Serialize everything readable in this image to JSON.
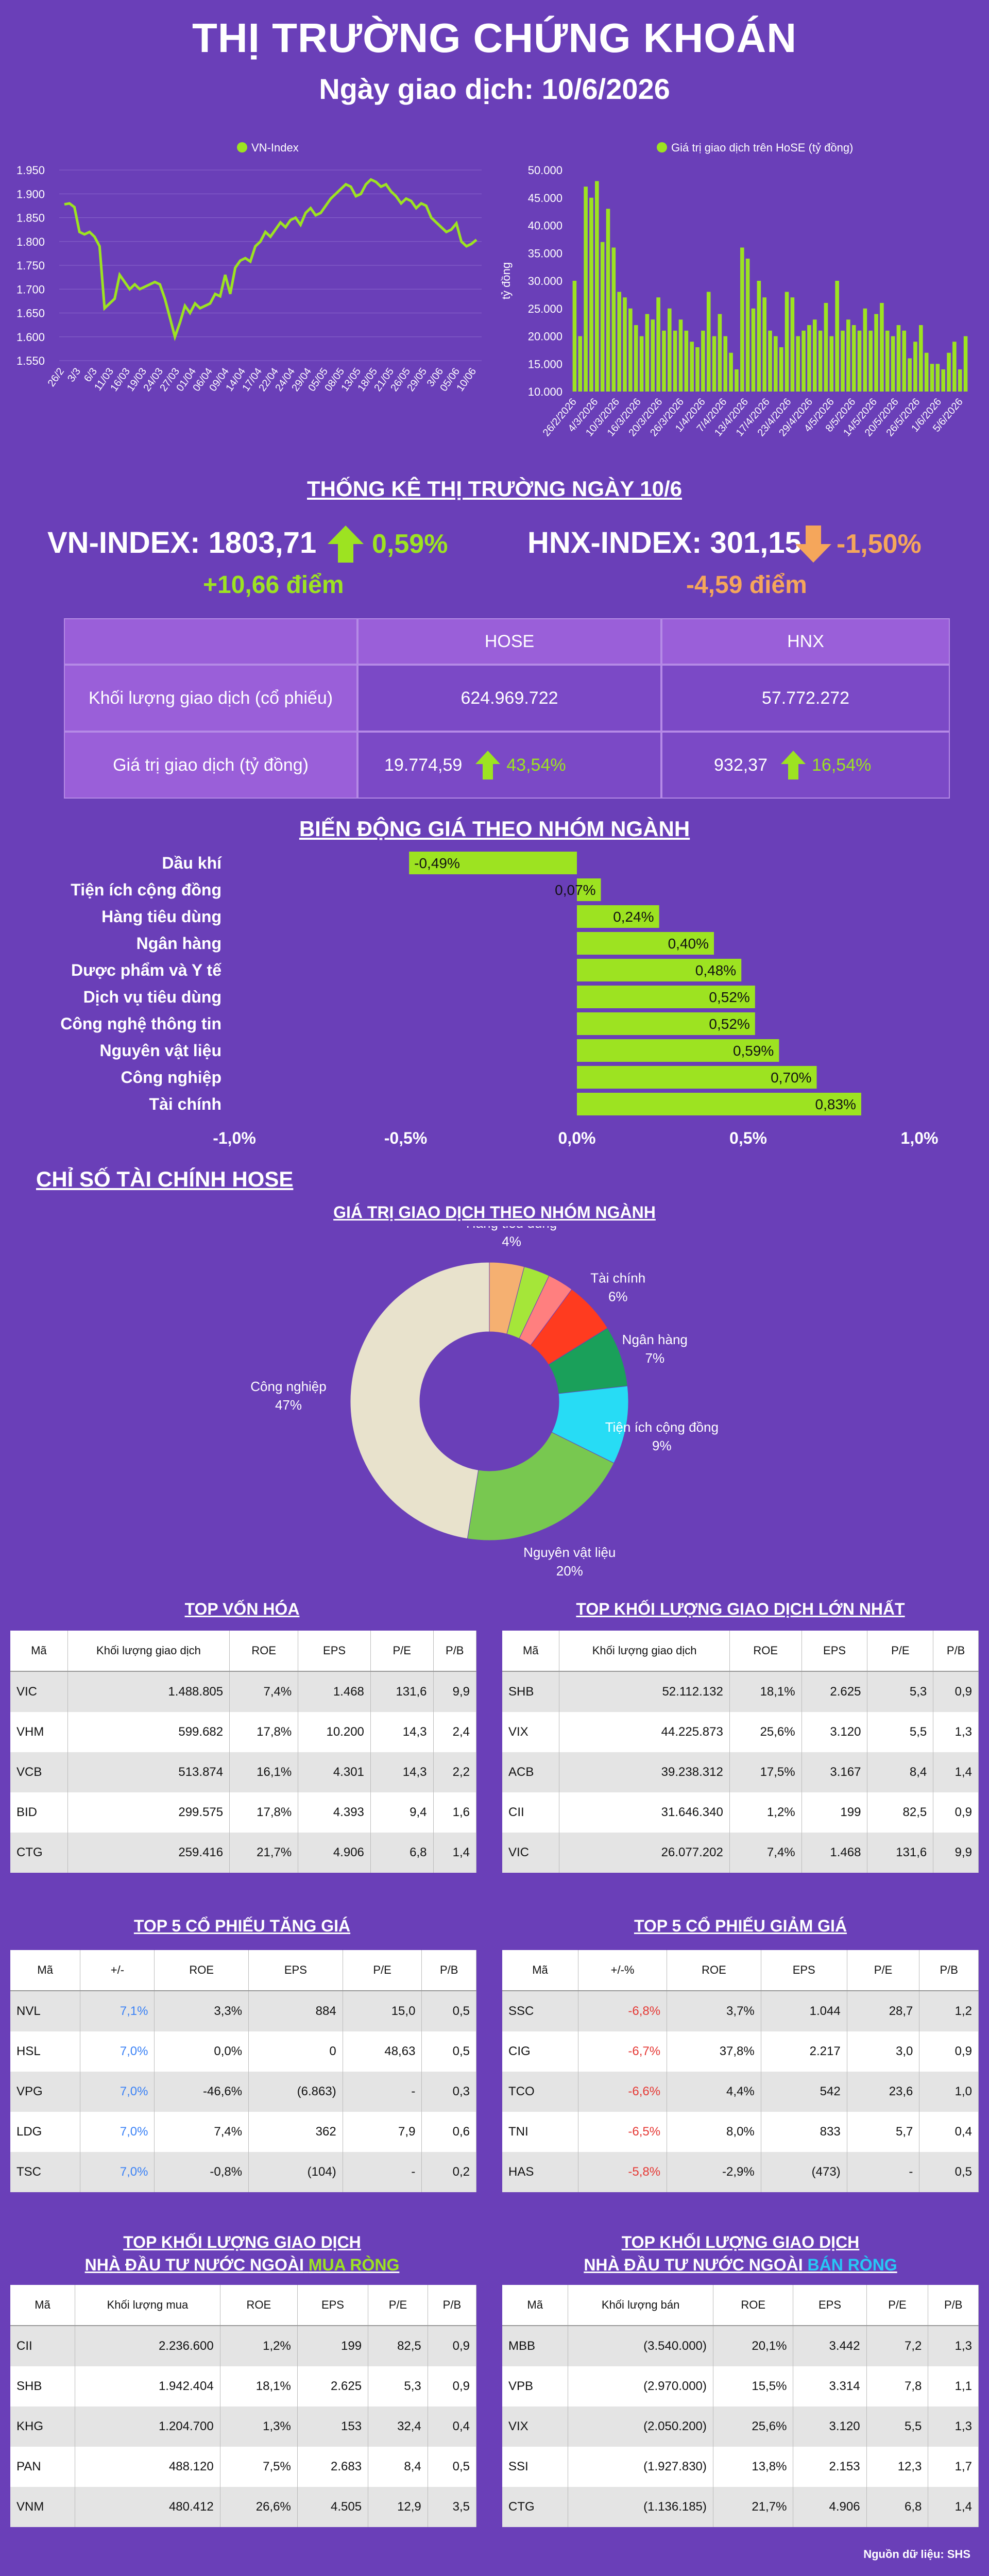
{
  "header": {
    "title": "THỊ TRƯỜNG CHỨNG KHOÁN",
    "subtitle": "Ngày giao dịch: 10/6/2026"
  },
  "colors": {
    "background": "#6a3fb8",
    "green": "#9de321",
    "orange": "#f5a65b",
    "table_head": "#9a5fd9"
  },
  "chart_data": [
    {
      "type": "line",
      "legend": "VN-Index",
      "color": "#9de321",
      "ylim": [
        1550,
        1950
      ],
      "yticks": [
        "1.950",
        "1.900",
        "1.850",
        "1.800",
        "1.750",
        "1.700",
        "1.650",
        "1.600",
        "1.550"
      ],
      "xticks": [
        "26/2",
        "3/3",
        "6/3",
        "11/03",
        "16/03",
        "19/03",
        "24/03",
        "27/03",
        "01/04",
        "06/04",
        "09/04",
        "14/04",
        "17/04",
        "22/04",
        "24/04",
        "29/04",
        "05/05",
        "08/05",
        "13/05",
        "18/05",
        "21/05",
        "26/05",
        "29/05",
        "3/06",
        "05/06",
        "10/06"
      ],
      "values": [
        1878,
        1880,
        1872,
        1820,
        1815,
        1820,
        1810,
        1790,
        1660,
        1670,
        1680,
        1730,
        1715,
        1700,
        1710,
        1700,
        1705,
        1710,
        1715,
        1710,
        1680,
        1640,
        1600,
        1630,
        1665,
        1650,
        1670,
        1660,
        1665,
        1670,
        1690,
        1685,
        1730,
        1690,
        1745,
        1760,
        1765,
        1758,
        1790,
        1800,
        1820,
        1810,
        1825,
        1840,
        1830,
        1845,
        1850,
        1835,
        1860,
        1870,
        1855,
        1860,
        1875,
        1890,
        1900,
        1910,
        1920,
        1915,
        1895,
        1900,
        1920,
        1930,
        1925,
        1915,
        1920,
        1905,
        1895,
        1880,
        1890,
        1885,
        1870,
        1880,
        1875,
        1850,
        1840,
        1830,
        1820,
        1825,
        1838,
        1800,
        1790,
        1795,
        1803.71
      ]
    },
    {
      "type": "bar",
      "legend": "Giá trị giao dịch trên HoSE (tỷ đồng)",
      "color": "#9de321",
      "ylabel": "tỷ đồng",
      "ylim": [
        10000,
        50000
      ],
      "yticks": [
        "50.000",
        "45.000",
        "40.000",
        "35.000",
        "30.000",
        "25.000",
        "20.000",
        "15.000",
        "10.000"
      ],
      "xticks": [
        "26/2/2026",
        "4/3/2026",
        "10/3/2026",
        "16/3/2026",
        "20/3/2026",
        "26/3/2026",
        "1/4/2026",
        "7/4/2026",
        "13/4/2026",
        "17/4/2026",
        "23/4/2026",
        "29/4/2026",
        "4/5/2026",
        "8/5/2026",
        "14/5/2026",
        "20/5/2026",
        "26/5/2026",
        "1/6/2026",
        "5/6/2026"
      ],
      "values": [
        30000,
        20000,
        47000,
        45000,
        48000,
        37000,
        43000,
        36000,
        28000,
        27000,
        25000,
        22000,
        20000,
        24000,
        23000,
        27000,
        21000,
        25000,
        21000,
        23000,
        21000,
        19000,
        18000,
        21000,
        28000,
        20000,
        24000,
        20000,
        17000,
        14000,
        36000,
        34000,
        25000,
        30000,
        27000,
        21000,
        20000,
        18000,
        28000,
        27000,
        20000,
        21000,
        22000,
        23000,
        21000,
        26000,
        20000,
        30000,
        21000,
        23000,
        22000,
        21000,
        25000,
        21000,
        24000,
        26000,
        21000,
        20000,
        22000,
        21000,
        16000,
        19000,
        22000,
        17000,
        15000,
        15000,
        14000,
        17000,
        19000,
        14000,
        20000
      ]
    },
    {
      "type": "bar",
      "orientation": "horizontal",
      "title": "BIẾN ĐỘNG GIÁ THEO NHÓM NGÀNH",
      "categories": [
        "Dầu khí",
        "Tiện ích cộng đồng",
        "Hàng tiêu dùng",
        "Ngân hàng",
        "Dược phẩm và Y tế",
        "Dịch vụ tiêu dùng",
        "Công nghệ thông tin",
        "Nguyên vật liệu",
        "Công nghiệp",
        "Tài chính"
      ],
      "values": [
        -0.49,
        0.07,
        0.24,
        0.4,
        0.48,
        0.52,
        0.52,
        0.59,
        0.7,
        0.83
      ],
      "labels": [
        "-0,49%",
        "0,07%",
        "0,24%",
        "0,40%",
        "0,48%",
        "0,52%",
        "0,52%",
        "0,59%",
        "0,70%",
        "0,83%"
      ],
      "xlim": [
        -1.0,
        1.0
      ],
      "xticks": [
        "-1,0%",
        "-0,5%",
        "0,0%",
        "0,5%",
        "1,0%"
      ]
    },
    {
      "type": "pie",
      "title": "GIÁ TRỊ GIAO DỊCH THEO NHÓM NGÀNH",
      "slices": [
        {
          "name": "Hàng tiêu dùng",
          "value": 4,
          "label": "4%",
          "color": "#f5b071"
        },
        {
          "name": "",
          "value": 3,
          "label": "",
          "color": "#a5e639"
        },
        {
          "name": "",
          "value": 3,
          "label": "",
          "color": "#ff7f7f"
        },
        {
          "name": "Tài chính",
          "value": 6,
          "label": "6%",
          "color": "#ff3b1f"
        },
        {
          "name": "Ngân hàng",
          "value": 7,
          "label": "7%",
          "color": "#1aa05a"
        },
        {
          "name": "Tiện ích cộng đồng",
          "value": 9,
          "label": "9%",
          "color": "#27dcf5"
        },
        {
          "name": "Nguyên vật liệu",
          "value": 20,
          "label": "20%",
          "color": "#78c850"
        },
        {
          "name": "Công nghiệp",
          "value": 47,
          "label": "47%",
          "color": "#e8e2cc"
        }
      ]
    }
  ],
  "stats": {
    "title": "THỐNG KÊ THỊ TRƯỜNG NGÀY 10/6",
    "vn_index": {
      "label": "VN-INDEX: 1803,71",
      "pct": "0,59%",
      "points": "+10,66 điểm"
    },
    "hnx_index": {
      "label": "HNX-INDEX: 301,15",
      "pct": "-1,50%",
      "points": "-4,59 điểm"
    },
    "table": {
      "col_hose": "HOSE",
      "col_hnx": "HNX",
      "row1_label": "Khối lượng giao dịch (cổ phiếu)",
      "row1_hose": "624.969.722",
      "row1_hnx": "57.772.272",
      "row2_label": "Giá trị giao dịch (tỷ đồng)",
      "row2_hose": "19.774,59",
      "row2_hose_pct": "43,54%",
      "row2_hnx": "932,37",
      "row2_hnx_pct": "16,54%"
    }
  },
  "sectors_title": "BIẾN ĐỘNG GIÁ THEO NHÓM NGÀNH",
  "fin_title": "CHỈ SỐ TÀI CHÍNH HOSE",
  "pie_title": "GIÁ TRỊ GIAO DỊCH THEO NHÓM NGÀNH",
  "tables": {
    "top_cap": {
      "title": "TOP VỐN HÓA",
      "headers": [
        "Mã",
        "Khối lượng giao dịch",
        "ROE",
        "EPS",
        "P/E",
        "P/B"
      ],
      "rows": [
        [
          "VIC",
          "1.488.805",
          "7,4%",
          "1.468",
          "131,6",
          "9,9"
        ],
        [
          "VHM",
          "599.682",
          "17,8%",
          "10.200",
          "14,3",
          "2,4"
        ],
        [
          "VCB",
          "513.874",
          "16,1%",
          "4.301",
          "14,3",
          "2,2"
        ],
        [
          "BID",
          "299.575",
          "17,8%",
          "4.393",
          "9,4",
          "1,6"
        ],
        [
          "CTG",
          "259.416",
          "21,7%",
          "4.906",
          "6,8",
          "1,4"
        ]
      ]
    },
    "top_volume": {
      "title": "TOP KHỐI LƯỢNG GIAO DỊCH LỚN NHẤT",
      "headers": [
        "Mã",
        "Khối lượng giao dịch",
        "ROE",
        "EPS",
        "P/E",
        "P/B"
      ],
      "rows": [
        [
          "SHB",
          "52.112.132",
          "18,1%",
          "2.625",
          "5,3",
          "0,9"
        ],
        [
          "VIX",
          "44.225.873",
          "25,6%",
          "3.120",
          "5,5",
          "1,3"
        ],
        [
          "ACB",
          "39.238.312",
          "17,5%",
          "3.167",
          "8,4",
          "1,4"
        ],
        [
          "CII",
          "31.646.340",
          "1,2%",
          "199",
          "82,5",
          "0,9"
        ],
        [
          "VIC",
          "26.077.202",
          "7,4%",
          "1.468",
          "131,6",
          "9,9"
        ]
      ]
    },
    "top_gain": {
      "title": "TOP 5 CỔ PHIẾU TĂNG GIÁ",
      "headers": [
        "Mã",
        "+/-",
        "ROE",
        "EPS",
        "P/E",
        "P/B"
      ],
      "rows": [
        [
          "NVL",
          "7,1%",
          "3,3%",
          "884",
          "15,0",
          "0,5"
        ],
        [
          "HSL",
          "7,0%",
          "0,0%",
          "0",
          "48,63",
          "0,5"
        ],
        [
          "VPG",
          "7,0%",
          "-46,6%",
          "(6.863)",
          "-",
          "0,3"
        ],
        [
          "LDG",
          "7,0%",
          "7,4%",
          "362",
          "7,9",
          "0,6"
        ],
        [
          "TSC",
          "7,0%",
          "-0,8%",
          "(104)",
          "-",
          "0,2"
        ]
      ]
    },
    "top_loss": {
      "title": "TOP 5 CỔ PHIẾU GIẢM GIÁ",
      "headers": [
        "Mã",
        "+/-%",
        "ROE",
        "EPS",
        "P/E",
        "P/B"
      ],
      "rows": [
        [
          "SSC",
          "-6,8%",
          "3,7%",
          "1.044",
          "28,7",
          "1,2"
        ],
        [
          "CIG",
          "-6,7%",
          "37,8%",
          "2.217",
          "3,0",
          "0,9"
        ],
        [
          "TCO",
          "-6,6%",
          "4,4%",
          "542",
          "23,6",
          "1,0"
        ],
        [
          "TNI",
          "-6,5%",
          "8,0%",
          "833",
          "5,7",
          "0,4"
        ],
        [
          "HAS",
          "-5,8%",
          "-2,9%",
          "(473)",
          "-",
          "0,5"
        ]
      ]
    },
    "foreign_buy": {
      "title_line1": "TOP KHỐI LƯỢNG GIAO DỊCH",
      "title_line2": "NHÀ ĐẦU TƯ NƯỚC NGOÀI",
      "title_hl": "MUA RÒNG",
      "headers": [
        "Mã",
        "Khối lượng mua",
        "ROE",
        "EPS",
        "P/E",
        "P/B"
      ],
      "rows": [
        [
          "CII",
          "2.236.600",
          "1,2%",
          "199",
          "82,5",
          "0,9"
        ],
        [
          "SHB",
          "1.942.404",
          "18,1%",
          "2.625",
          "5,3",
          "0,9"
        ],
        [
          "KHG",
          "1.204.700",
          "1,3%",
          "153",
          "32,4",
          "0,4"
        ],
        [
          "PAN",
          "488.120",
          "7,5%",
          "2.683",
          "8,4",
          "0,5"
        ],
        [
          "VNM",
          "480.412",
          "26,6%",
          "4.505",
          "12,9",
          "3,5"
        ]
      ]
    },
    "foreign_sell": {
      "title_line1": "TOP KHỐI LƯỢNG GIAO DỊCH",
      "title_line2": "NHÀ ĐẦU TƯ NƯỚC NGOÀI",
      "title_hl": "BÁN RÒNG",
      "headers": [
        "Mã",
        "Khối lượng bán",
        "ROE",
        "EPS",
        "P/E",
        "P/B"
      ],
      "rows": [
        [
          "MBB",
          "(3.540.000)",
          "20,1%",
          "3.442",
          "7,2",
          "1,3"
        ],
        [
          "VPB",
          "(2.970.000)",
          "15,5%",
          "3.314",
          "7,8",
          "1,1"
        ],
        [
          "VIX",
          "(2.050.200)",
          "25,6%",
          "3.120",
          "5,5",
          "1,3"
        ],
        [
          "SSI",
          "(1.927.830)",
          "13,8%",
          "2.153",
          "12,3",
          "1,7"
        ],
        [
          "CTG",
          "(1.136.185)",
          "21,7%",
          "4.906",
          "6,8",
          "1,4"
        ]
      ]
    }
  },
  "footer": {
    "source": "Nguồn dữ liệu: SHS"
  }
}
